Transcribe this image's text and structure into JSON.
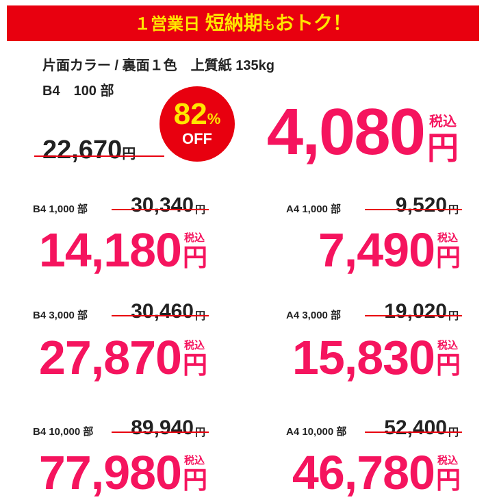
{
  "banner": {
    "lead": "１営業日",
    "main": "短納期",
    "small": "も",
    "tail": "おトク！"
  },
  "spec": {
    "line1": "片面カラー / 裏面１色　上質紙 135kg",
    "line2": "B4　100 部"
  },
  "featured": {
    "old_price": "22,670",
    "badge_number": "82",
    "badge_percent": "%",
    "badge_off": "OFF",
    "price": "4,080"
  },
  "units": {
    "yen": "円",
    "tax": "税込"
  },
  "items": [
    {
      "label": "B4 1,000 部",
      "old_price": "30,340",
      "price": "14,180"
    },
    {
      "label": "A4 1,000 部",
      "old_price": "9,520",
      "price": "7,490"
    },
    {
      "label": "B4 3,000 部",
      "old_price": "30,460",
      "price": "27,870"
    },
    {
      "label": "A4 3,000 部",
      "old_price": "19,020",
      "price": "15,830"
    },
    {
      "label": "B4 10,000 部",
      "old_price": "89,940",
      "price": "77,980"
    },
    {
      "label": "A4 10,000 部",
      "old_price": "52,400",
      "price": "46,780"
    }
  ]
}
